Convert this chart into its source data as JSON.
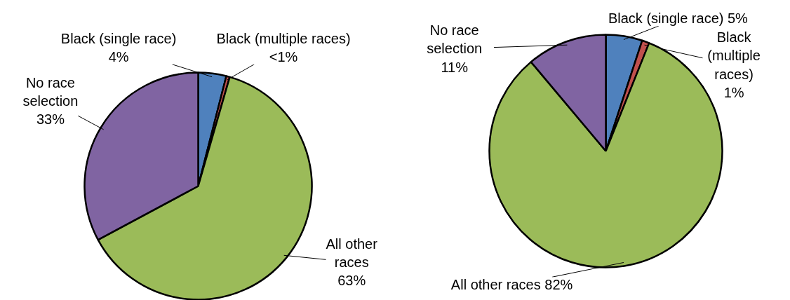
{
  "chart_data": [
    {
      "type": "pie",
      "categories": [
        "Black (single race)",
        "Black (multiple races)",
        "All other races",
        "No race selection"
      ],
      "values": [
        4,
        0.5,
        63,
        33
      ],
      "value_labels": [
        "4%",
        "<1%",
        "63%",
        "33%"
      ],
      "colors": [
        "#4f81bd",
        "#c0504d",
        "#9bbb59",
        "#8064a2"
      ]
    },
    {
      "type": "pie",
      "categories": [
        "Black (single race)",
        "Black (multiple races)",
        "All other races",
        "No race selection"
      ],
      "values": [
        5,
        1,
        82,
        11
      ],
      "value_labels": [
        "5%",
        "1%",
        "82%",
        "11%"
      ],
      "colors": [
        "#4f81bd",
        "#c0504d",
        "#9bbb59",
        "#8064a2"
      ]
    }
  ]
}
